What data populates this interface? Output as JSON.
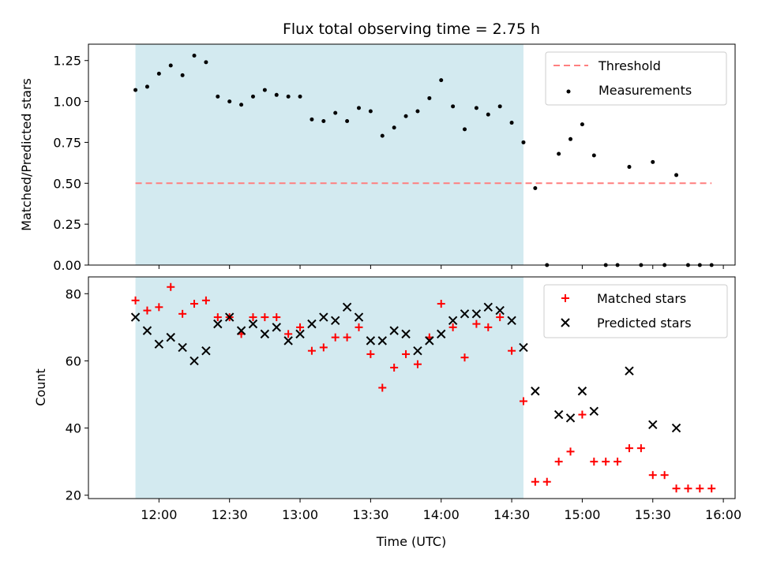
{
  "chart_data": [
    {
      "type": "scatter",
      "title": "Flux total observing time = 2.75 h",
      "xlabel": "",
      "ylabel": "Matched/Predicted stars",
      "ylim": [
        0,
        1.35
      ],
      "yticks": [
        "0.00",
        "0.25",
        "0.50",
        "0.75",
        "1.00",
        "1.25"
      ],
      "ytick_values": [
        0,
        0.25,
        0.5,
        0.75,
        1.0,
        1.25
      ],
      "grid": false,
      "legend_position": "top-right",
      "shaded_span": {
        "start": "11:50",
        "end": "14:35",
        "color": "#d3eaf0"
      },
      "threshold": {
        "name": "Threshold",
        "value": 0.5,
        "from": "11:50",
        "to": "15:55",
        "color": "#ff7f7f"
      },
      "series": [
        {
          "name": "Measurements",
          "color": "#000000",
          "x": [
            "11:50",
            "11:55",
            "12:00",
            "12:05",
            "12:10",
            "12:15",
            "12:20",
            "12:25",
            "12:30",
            "12:35",
            "12:40",
            "12:45",
            "12:50",
            "12:55",
            "13:00",
            "13:05",
            "13:10",
            "13:15",
            "13:20",
            "13:25",
            "13:30",
            "13:35",
            "13:40",
            "13:45",
            "13:50",
            "13:55",
            "14:00",
            "14:05",
            "14:10",
            "14:15",
            "14:20",
            "14:25",
            "14:30",
            "14:35",
            "14:40",
            "14:45",
            "14:50",
            "14:55",
            "15:00",
            "15:05",
            "15:10",
            "15:15",
            "15:20",
            "15:25",
            "15:30",
            "15:35",
            "15:40",
            "15:45",
            "15:50",
            "15:55"
          ],
          "y": [
            1.07,
            1.09,
            1.17,
            1.22,
            1.16,
            1.28,
            1.24,
            1.03,
            1.0,
            0.98,
            1.03,
            1.07,
            1.04,
            1.03,
            1.03,
            0.89,
            0.88,
            0.93,
            0.88,
            0.96,
            0.94,
            0.79,
            0.84,
            0.91,
            0.94,
            1.02,
            1.13,
            0.97,
            0.83,
            0.96,
            0.92,
            0.97,
            0.87,
            0.75,
            0.47,
            0.0,
            0.68,
            0.77,
            0.86,
            0.67,
            0.0,
            0.0,
            0.6,
            0.0,
            0.63,
            0.0,
            0.55,
            0.0,
            0.0,
            0.0
          ]
        }
      ]
    },
    {
      "type": "scatter",
      "title": "",
      "xlabel": "Time (UTC)",
      "ylabel": "Count",
      "ylim": [
        19,
        85
      ],
      "yticks": [
        "20",
        "40",
        "60",
        "80"
      ],
      "ytick_values": [
        20,
        40,
        60,
        80
      ],
      "xticks": [
        "12:00",
        "12:30",
        "13:00",
        "13:30",
        "14:00",
        "14:30",
        "15:00",
        "15:30",
        "16:00"
      ],
      "xlim": [
        "11:30",
        "16:05"
      ],
      "grid": false,
      "legend_position": "top-right",
      "shaded_span": {
        "start": "11:50",
        "end": "14:35",
        "color": "#d3eaf0"
      },
      "series": [
        {
          "name": "Matched stars",
          "marker": "+",
          "color": "#ff0000",
          "x": [
            "11:50",
            "11:55",
            "12:00",
            "12:05",
            "12:10",
            "12:15",
            "12:20",
            "12:25",
            "12:30",
            "12:35",
            "12:40",
            "12:45",
            "12:50",
            "12:55",
            "13:00",
            "13:05",
            "13:10",
            "13:15",
            "13:20",
            "13:25",
            "13:30",
            "13:35",
            "13:40",
            "13:45",
            "13:50",
            "13:55",
            "14:00",
            "14:05",
            "14:10",
            "14:15",
            "14:20",
            "14:25",
            "14:30",
            "14:35",
            "14:40",
            "14:45",
            "14:50",
            "14:55",
            "15:00",
            "15:05",
            "15:10",
            "15:15",
            "15:20",
            "15:25",
            "15:30",
            "15:35",
            "15:40",
            "15:45",
            "15:50",
            "15:55"
          ],
          "y": [
            78,
            75,
            76,
            82,
            74,
            77,
            78,
            73,
            73,
            68,
            73,
            73,
            73,
            68,
            70,
            63,
            64,
            67,
            67,
            70,
            62,
            52,
            58,
            62,
            59,
            67,
            77,
            70,
            61,
            71,
            70,
            73,
            63,
            48,
            24,
            24,
            30,
            33,
            44,
            30,
            30,
            30,
            34,
            34,
            26,
            26,
            22,
            22,
            22,
            22
          ]
        },
        {
          "name": "Predicted stars",
          "marker": "x",
          "color": "#000000",
          "x": [
            "11:50",
            "11:55",
            "12:00",
            "12:05",
            "12:10",
            "12:15",
            "12:20",
            "12:25",
            "12:30",
            "12:35",
            "12:40",
            "12:45",
            "12:50",
            "12:55",
            "13:00",
            "13:05",
            "13:10",
            "13:15",
            "13:20",
            "13:25",
            "13:30",
            "13:35",
            "13:40",
            "13:45",
            "13:50",
            "13:55",
            "14:00",
            "14:05",
            "14:10",
            "14:15",
            "14:20",
            "14:25",
            "14:30",
            "14:35",
            "14:40",
            "14:50",
            "14:55",
            "15:00",
            "15:05",
            "15:20",
            "15:30",
            "15:40"
          ],
          "y": [
            73,
            69,
            65,
            67,
            64,
            60,
            63,
            71,
            73,
            69,
            71,
            68,
            70,
            66,
            68,
            71,
            73,
            72,
            76,
            73,
            66,
            66,
            69,
            68,
            63,
            66,
            68,
            72,
            74,
            74,
            76,
            75,
            72,
            64,
            51,
            44,
            43,
            51,
            45,
            57,
            41,
            40
          ]
        }
      ]
    }
  ]
}
